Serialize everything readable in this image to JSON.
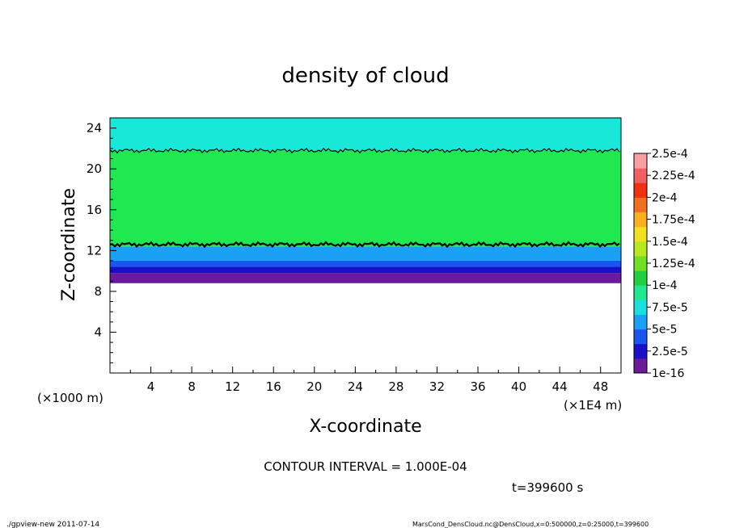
{
  "chart_data": {
    "type": "heatmap",
    "title": "density of cloud",
    "xlabel": "X-coordinate",
    "ylabel": "Z-coordinate",
    "x_unit": "(×1E4 m)",
    "y_unit": "(×1000 m)",
    "xlim": [
      0,
      50
    ],
    "ylim": [
      0,
      25
    ],
    "x_ticks": [
      "4",
      "8",
      "12",
      "16",
      "20",
      "24",
      "28",
      "32",
      "36",
      "40",
      "44",
      "48"
    ],
    "y_ticks": [
      "4",
      "8",
      "12",
      "16",
      "20",
      "24"
    ],
    "colorbar": {
      "labels": [
        "1e-16",
        "2.5e-5",
        "5e-5",
        "7.5e-5",
        "1e-4",
        "1.25e-4",
        "1.5e-4",
        "1.75e-4",
        "2e-4",
        "2.25e-4",
        "2.5e-4"
      ],
      "colors": [
        "#6a1a9a",
        "#1810c8",
        "#1a55f0",
        "#1aa0f5",
        "#18e0e0",
        "#20e890",
        "#20d040",
        "#70e020",
        "#b8e820",
        "#f0e020",
        "#f8b020",
        "#f07020",
        "#f03010",
        "#f06060",
        "#f8a0a0"
      ]
    },
    "layers": [
      {
        "z_bottom": 8.8,
        "z_top": 9.8,
        "value": "1e-16",
        "color": "#6a1a9a"
      },
      {
        "z_bottom": 9.8,
        "z_top": 10.4,
        "value": "2.5e-5",
        "color": "#1810c8"
      },
      {
        "z_bottom": 10.4,
        "z_top": 11.0,
        "value": "5e-5",
        "color": "#1a55f0"
      },
      {
        "z_bottom": 11.0,
        "z_top": 12.4,
        "value": "7.5e-5",
        "color": "#1aa0f5"
      },
      {
        "z_bottom": 12.4,
        "z_top": 21.8,
        "value": "1.25e-4",
        "color": "#20e850"
      },
      {
        "z_bottom": 21.8,
        "z_top": 25.0,
        "value": "1e-4",
        "color": "#18e8d8"
      }
    ],
    "contour_levels_z": [
      12.6,
      21.8
    ],
    "contour_interval": "CONTOUR INTERVAL = 1.000E-04",
    "time": "t=399600 s"
  },
  "footer": {
    "left": "./gpview-new  2011-07-14",
    "right": "MarsCond_DensCloud.nc@DensCloud,x=0:500000,z=0:25000,t=399600"
  }
}
